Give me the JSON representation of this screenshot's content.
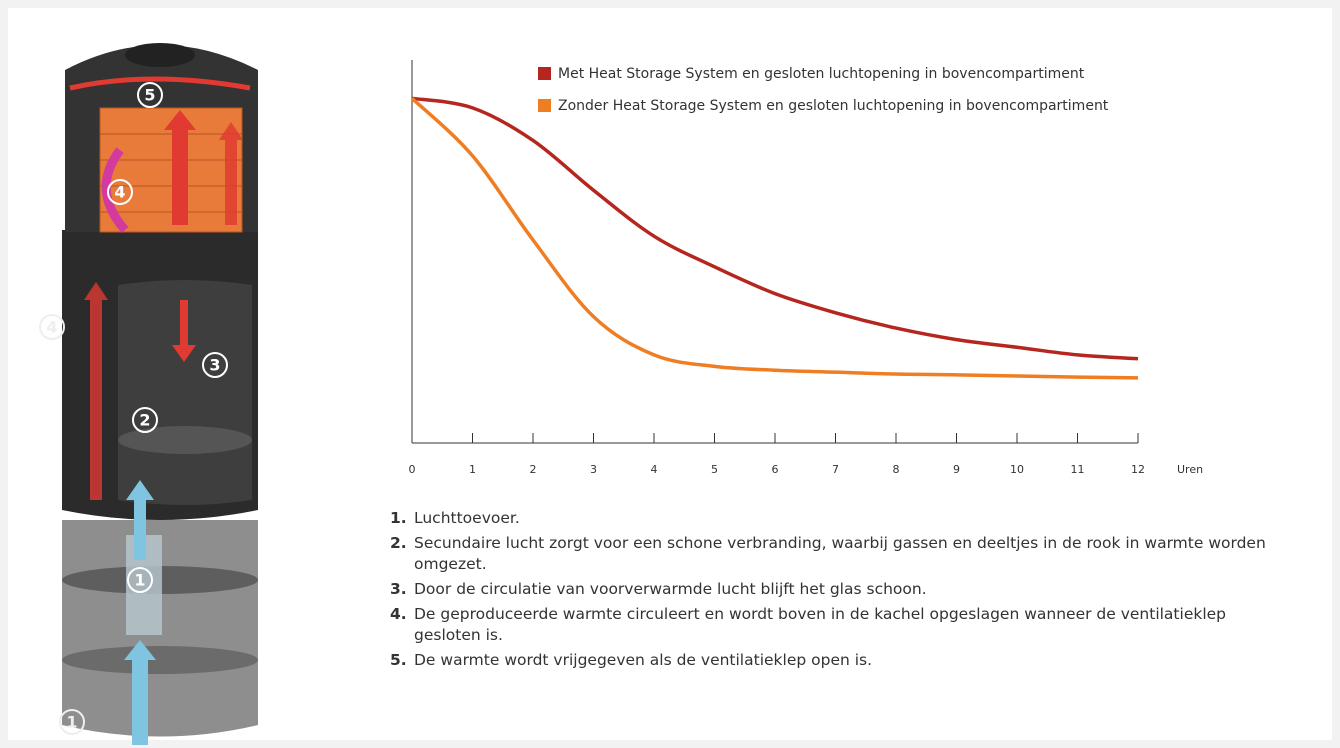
{
  "chart_data": {
    "type": "line",
    "x": [
      0,
      1,
      2,
      3,
      4,
      5,
      6,
      7,
      8,
      9,
      10,
      11,
      12
    ],
    "xlim": [
      0,
      12
    ],
    "xticks": [
      0,
      1,
      2,
      3,
      4,
      5,
      6,
      7,
      8,
      9,
      10,
      11,
      12
    ],
    "xlabel": "Uren",
    "ylim": [
      0,
      100
    ],
    "series": [
      {
        "name": "Met Heat Storage System en gesloten luchtopening in bovencompartiment",
        "color": "#b5261e",
        "values": [
          90,
          87.5,
          79,
          66,
          54,
          46,
          39,
          34,
          30,
          27,
          25,
          23,
          22
        ]
      },
      {
        "name": "Zonder Heat Storage System en gesloten luchtopening in bovencompartiment",
        "color": "#ef7d22",
        "values": [
          90,
          75,
          53,
          33,
          23,
          20,
          19,
          18.5,
          18,
          17.8,
          17.5,
          17.2,
          17
        ]
      }
    ]
  },
  "illustration_labels": [
    "5",
    "4",
    "3",
    "2",
    "1",
    "4",
    "1"
  ],
  "list": [
    {
      "number": "1.",
      "text": "Luchttoevoer."
    },
    {
      "number": "2.",
      "text": "Secundaire lucht zorgt voor een schone verbranding, waarbij gassen en deeltjes in de rook in warmte worden omgezet."
    },
    {
      "number": "3.",
      "text": "Door de circulatie van voorverwarmde lucht blijft het glas schoon."
    },
    {
      "number": "4.",
      "text": "De geproduceerde warmte circuleert en wordt boven in de kachel opgeslagen wanneer de ventilatieklep gesloten is."
    },
    {
      "number": "5.",
      "text": "De warmte wordt vrijgegeven als de ventilatieklep open is."
    }
  ]
}
